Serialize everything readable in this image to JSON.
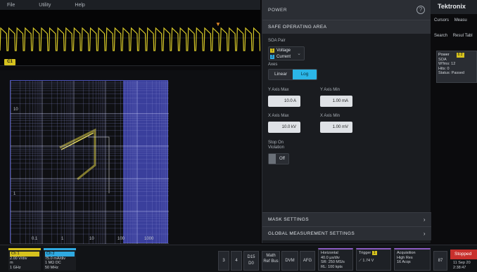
{
  "menu": [
    "File",
    "Utility",
    "Help"
  ],
  "waveform": {
    "channel_badge": "C1"
  },
  "soa_plot": {
    "x_ticks": [
      "0.1",
      "1",
      "10",
      "100",
      "1000"
    ],
    "y_ticks": [
      "10",
      "1"
    ]
  },
  "panel": {
    "title": "POWER",
    "help": "?",
    "section": "SAFE OPERATING AREA",
    "soa_pair_label": "SOA Pair",
    "soa_pair": [
      {
        "ch": "1",
        "name": "Voltage"
      },
      {
        "ch": "2",
        "name": "Current"
      }
    ],
    "axes_label": "Axes",
    "axes_options": [
      "Linear",
      "Log"
    ],
    "y_axis_max_label": "Y Axis Max",
    "y_axis_max": "10.0 A",
    "y_axis_min_label": "Y Axis Min",
    "y_axis_min": "1.00 mA",
    "x_axis_max_label": "X Axis Max",
    "x_axis_max": "10.0 kV",
    "x_axis_min_label": "X Axis Min",
    "x_axis_min": "1.00 mV",
    "stop_on_violation_label": "Stop On Violation",
    "stop_on_violation": "Off",
    "mask_settings": "MASK SETTINGS",
    "global_settings": "GLOBAL MEASUREMENT SETTINGS"
  },
  "right": {
    "brand": "Tektronix",
    "cursors": "Cursors",
    "measure": "Measu",
    "search": "Search",
    "results_table": "Resul Tabl",
    "meas_title": "Power",
    "meas_badge": "6 2",
    "meas_lines": [
      "SOA",
      "W'fms: 12",
      "Hits: 0",
      "Status: Passed"
    ]
  },
  "bottom": {
    "ch1": {
      "title": "Ch 1",
      "lines": [
        "2.00 V/div",
        "m",
        "1 GHz"
      ]
    },
    "ch2": {
      "title": "Ch 2",
      "lines": [
        "75.0 mA/div",
        "1 MΩ DC",
        "50 MHz"
      ]
    },
    "buttons": [
      "3",
      "4",
      "D15 D0",
      "Math Ref Bus",
      "DVM",
      "AFG"
    ],
    "horizontal": {
      "title": "Horizontal",
      "lines": [
        "40.0 μs/div",
        "SR: 250 MS/s",
        "RL: 100 kpts"
      ]
    },
    "trigger": {
      "title": "Trigger",
      "badge": "1",
      "value": "1.74 V"
    },
    "acquisition": {
      "title": "Acquisition",
      "lines": [
        "High Res",
        "16 Acqs"
      ]
    },
    "misc_button": "87",
    "status": "Stopped",
    "date": [
      "11 Sep 20",
      "2:38:47"
    ]
  }
}
